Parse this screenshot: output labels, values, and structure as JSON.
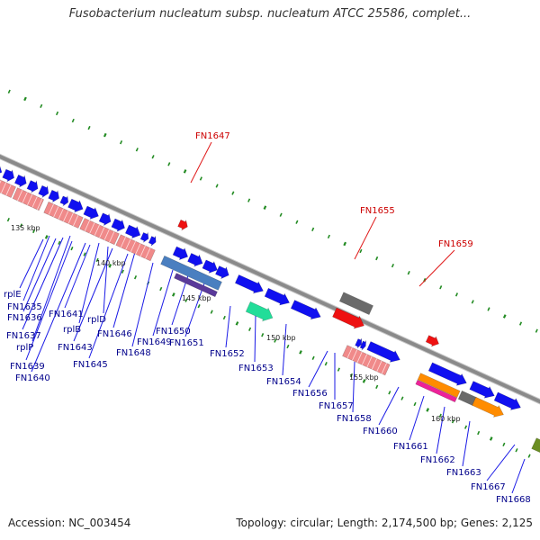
{
  "title": "Fusobacterium nucleatum subsp. nucleatum ATCC 25586, complet...",
  "footer": {
    "accession": "Accession: NC_003454",
    "topology": "Topology: circular; Length: 2,174,500 bp; Genes: 2,125"
  },
  "colors": {
    "backbone": "#8a8a8a",
    "gene_forward": "#1010f0",
    "gene_reverse_pink": "#f08a8a",
    "gene_red": "#ee1111",
    "gene_gray": "#6a6a6a",
    "gene_steelblue": "#4a7fc0",
    "gene_purple": "#5a3a9a",
    "gene_teal": "#22dd99",
    "gene_orange": "#ff8c00",
    "gene_magenta": "#ee2299",
    "gene_olive": "#6b8e23",
    "label_blue": "#00008b",
    "label_red": "#cc0000",
    "tick_green": "#228b22"
  },
  "scale_labels": [
    "135 kbp",
    "140 kbp",
    "145 kbp",
    "150 kbp",
    "155 kbp",
    "160 kbp"
  ],
  "gene_labels_bottom": [
    "rplE",
    "FN1635",
    "FN1636",
    "FN1637",
    "rplP",
    "FN1639",
    "FN1640",
    "FN1641",
    "rplB",
    "FN1643",
    "rplD",
    "FN1645",
    "FN1646",
    "FN1648",
    "FN1649",
    "FN1650",
    "FN1651",
    "FN1652",
    "FN1653",
    "FN1654",
    "FN1656",
    "FN1657",
    "FN1658",
    "FN1660",
    "FN1661",
    "FN1662",
    "FN1663",
    "FN1667",
    "FN1668"
  ],
  "gene_labels_top": [
    "FN1647",
    "FN1655",
    "FN1659"
  ]
}
